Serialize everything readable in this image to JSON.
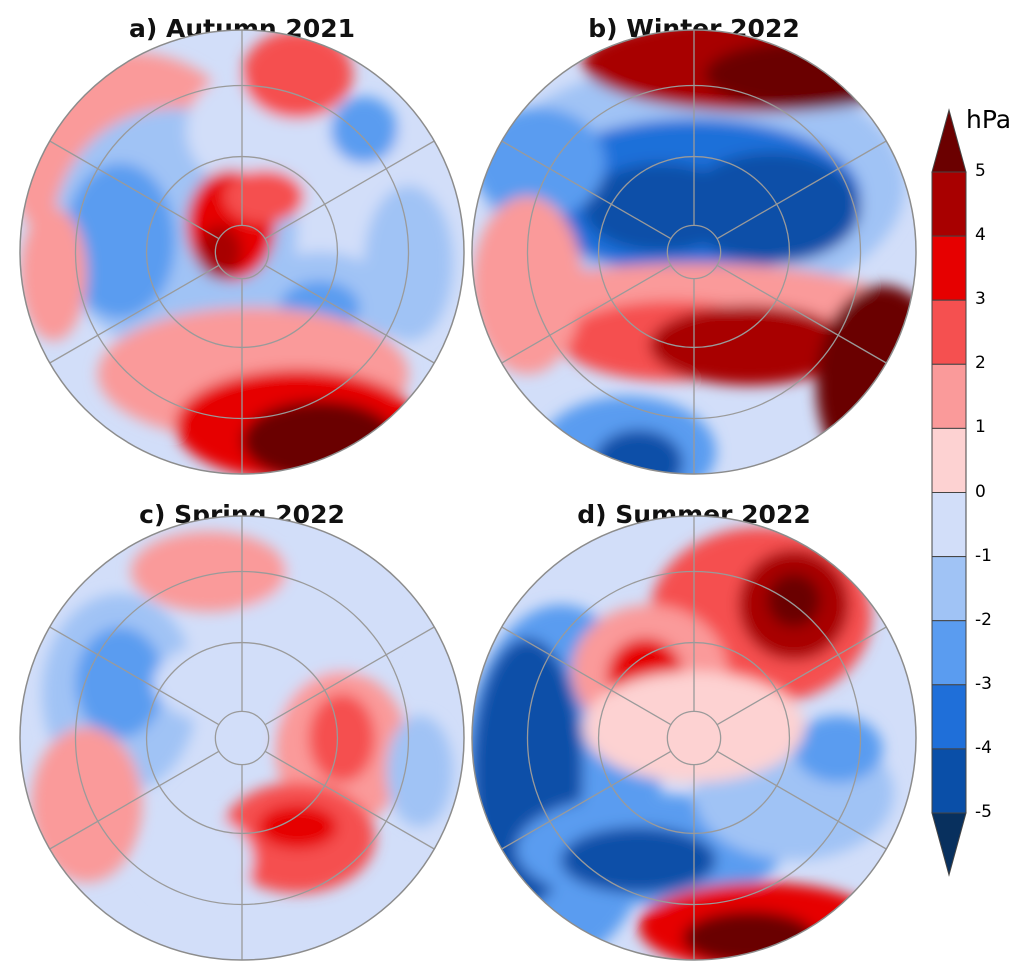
{
  "panels": [
    {
      "id": "a",
      "title": "a)  Autumn 2021"
    },
    {
      "id": "b",
      "title": "b)  Winter 2022"
    },
    {
      "id": "c",
      "title": "c)  Spring 2022"
    },
    {
      "id": "d",
      "title": "d)  Summer 2022"
    }
  ],
  "colorbar": {
    "unit": "hPa",
    "labels": [
      "5",
      "4",
      "3",
      "2",
      "1",
      "0",
      "-1",
      "-2",
      "-3",
      "-4",
      "-5"
    ],
    "colors": [
      "#6b0000",
      "#a80000",
      "#e60000",
      "#f55050",
      "#fa9a9a",
      "#fdd2d2",
      "#d2def9",
      "#a0c3f5",
      "#5a9cf0",
      "#1f6fd9",
      "#0a4fa8",
      "#08305e"
    ]
  },
  "chart_data": {
    "type": "heatmap",
    "projection": "north-polar-stereographic",
    "field": "pressure anomaly",
    "unit": "hPa",
    "levels": [
      -5,
      -4,
      -3,
      -2,
      -1,
      0,
      1,
      2,
      3,
      4,
      5
    ],
    "extend": "both",
    "panels": [
      {
        "title": "a)  Autumn 2021",
        "features": [
          {
            "sign": "positive",
            "peak": 5,
            "region": "bottom (North Pacific / Aleutians)"
          },
          {
            "sign": "positive",
            "peak": 4,
            "region": "near pole"
          },
          {
            "sign": "positive",
            "peak": 2,
            "region": "top"
          },
          {
            "sign": "negative",
            "peak": -2,
            "region": "left"
          },
          {
            "sign": "negative",
            "peak": -3,
            "region": "center-right"
          }
        ]
      },
      {
        "title": "b)  Winter 2022",
        "features": [
          {
            "sign": "negative",
            "peak": -5,
            "region": "polar cap"
          },
          {
            "sign": "positive",
            "peak": 5,
            "region": "top"
          },
          {
            "sign": "positive",
            "peak": 5,
            "region": "lower-right"
          },
          {
            "sign": "negative",
            "peak": -5,
            "region": "bottom-left"
          },
          {
            "sign": "positive",
            "peak": 3,
            "region": "lower-center"
          }
        ]
      },
      {
        "title": "c)  Spring 2022",
        "features": [
          {
            "sign": "negative",
            "peak": -3,
            "region": "left"
          },
          {
            "sign": "positive",
            "peak": 3,
            "region": "lower-right"
          },
          {
            "sign": "negative",
            "peak": -1,
            "region": "pole"
          }
        ]
      },
      {
        "title": "d)  Summer 2022",
        "features": [
          {
            "sign": "positive",
            "peak": 5,
            "region": "upper-right"
          },
          {
            "sign": "positive",
            "peak": 4,
            "region": "upper-left of pole"
          },
          {
            "sign": "negative",
            "peak": -5,
            "region": "lower-left"
          },
          {
            "sign": "positive",
            "peak": 5,
            "region": "bottom"
          },
          {
            "sign": "negative",
            "peak": -3,
            "region": "right"
          }
        ]
      }
    ]
  }
}
